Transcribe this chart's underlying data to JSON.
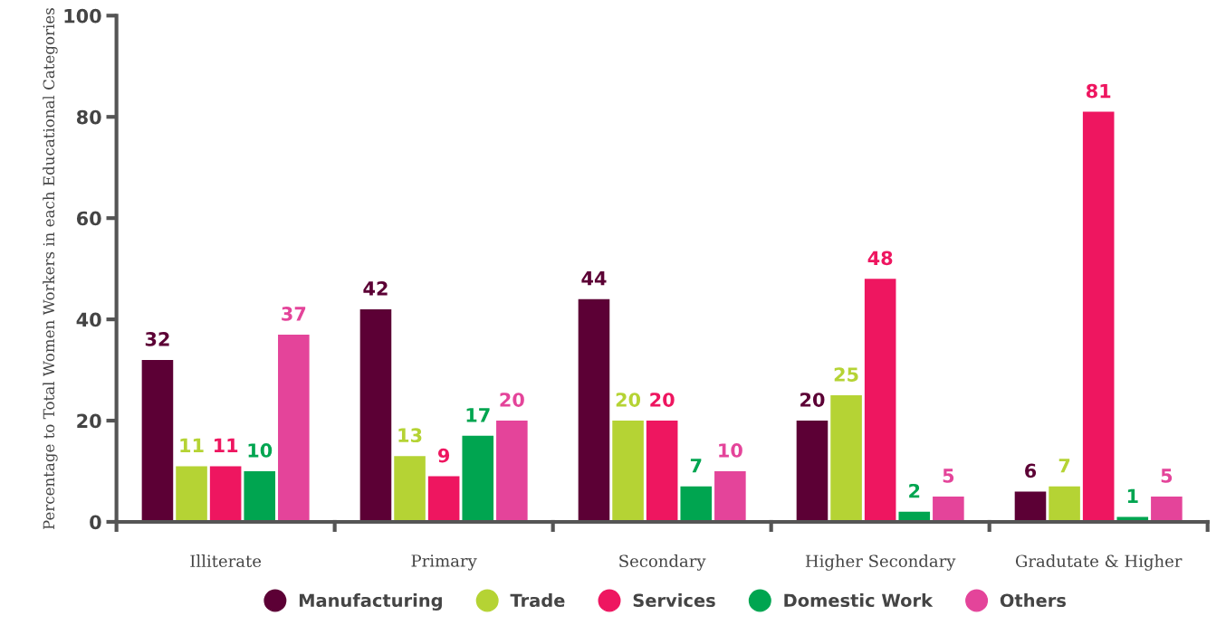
{
  "chart_data": {
    "type": "bar",
    "ylabel": "Percentage to Total Women Workers in each Educational Categories",
    "categories": [
      "Illiterate",
      "Primary",
      "Secondary",
      "Higher Secondary",
      "Gradutate & Higher"
    ],
    "series": [
      {
        "name": "Manufacturing",
        "color": "#5c0035",
        "values": [
          32,
          42,
          44,
          20,
          6
        ]
      },
      {
        "name": "Trade",
        "color": "#b5d334",
        "values": [
          11,
          13,
          20,
          25,
          7
        ]
      },
      {
        "name": "Services",
        "color": "#ee1660",
        "values": [
          11,
          9,
          20,
          48,
          81
        ]
      },
      {
        "name": "Domestic Work",
        "color": "#00a550",
        "values": [
          10,
          17,
          7,
          2,
          1
        ]
      },
      {
        "name": "Others",
        "color": "#e4449a",
        "values": [
          37,
          20,
          10,
          5,
          5
        ]
      }
    ],
    "ylim": [
      0,
      100
    ],
    "yticks": [
      0,
      20,
      40,
      60,
      80,
      100
    ],
    "grid": false,
    "legend": "bottom",
    "data_labels": true
  }
}
